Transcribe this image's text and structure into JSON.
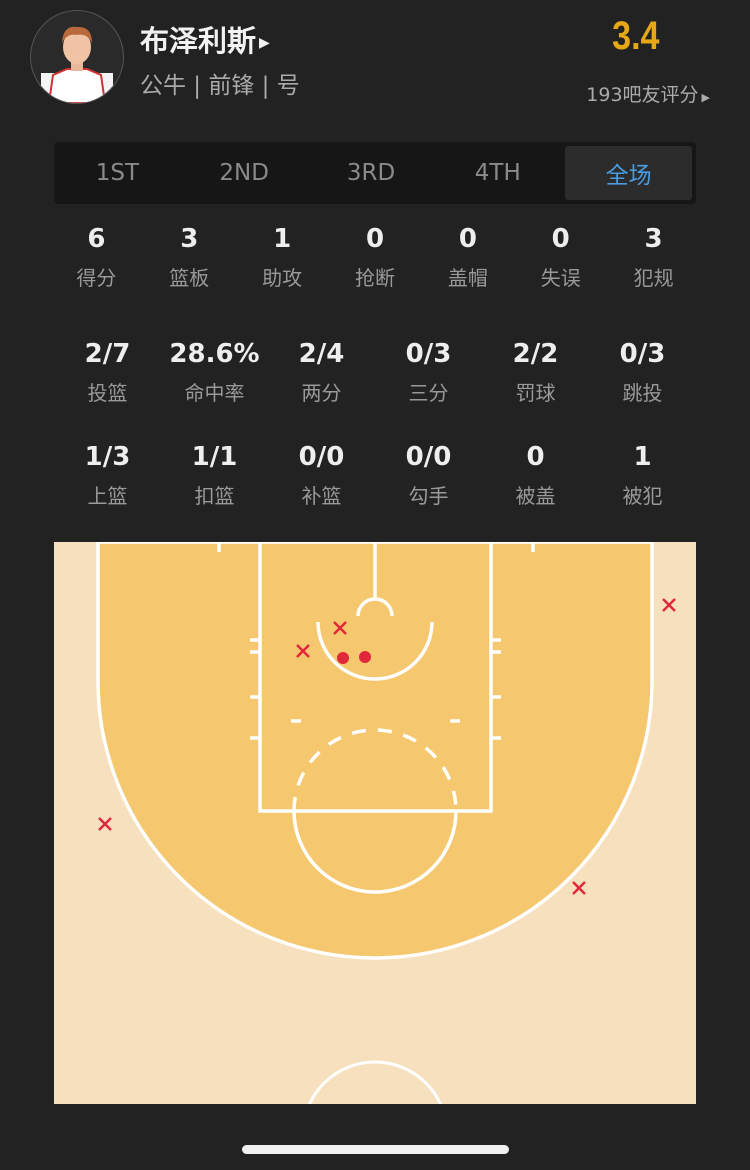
{
  "player": {
    "name": "布泽利斯",
    "info": "公牛 | 前锋 | 号",
    "rating": "3.4",
    "votes": "193吧友评分"
  },
  "tabs": [
    {
      "label": "1ST"
    },
    {
      "label": "2ND"
    },
    {
      "label": "3RD"
    },
    {
      "label": "4TH"
    },
    {
      "label": "全场",
      "active": true
    }
  ],
  "basic": [
    {
      "v": "6",
      "l": "得分"
    },
    {
      "v": "3",
      "l": "篮板"
    },
    {
      "v": "1",
      "l": "助攻"
    },
    {
      "v": "0",
      "l": "抢断"
    },
    {
      "v": "0",
      "l": "盖帽"
    },
    {
      "v": "0",
      "l": "失误"
    },
    {
      "v": "3",
      "l": "犯规"
    }
  ],
  "shooting": [
    {
      "v": "2/7",
      "l": "投篮"
    },
    {
      "v": "28.6%",
      "l": "命中率"
    },
    {
      "v": "2/4",
      "l": "两分"
    },
    {
      "v": "0/3",
      "l": "三分"
    },
    {
      "v": "2/2",
      "l": "罚球"
    },
    {
      "v": "0/3",
      "l": "跳投"
    }
  ],
  "types": [
    {
      "v": "1/3",
      "l": "上篮"
    },
    {
      "v": "1/1",
      "l": "扣篮"
    },
    {
      "v": "0/0",
      "l": "补篮"
    },
    {
      "v": "0/0",
      "l": "勾手"
    },
    {
      "v": "0",
      "l": "被盖"
    },
    {
      "v": "1",
      "l": "被犯"
    }
  ],
  "colors": {
    "rating": "#e6a817",
    "active_tab": "#4a9be0",
    "shot": "#e0283a",
    "paint": "#f5c76e",
    "outside": "#f7e0bd"
  },
  "shots": [
    {
      "result": "miss",
      "zone": "right corner three"
    },
    {
      "result": "miss",
      "zone": "paint"
    },
    {
      "result": "miss",
      "zone": "paint"
    },
    {
      "result": "make",
      "zone": "restricted area"
    },
    {
      "result": "make",
      "zone": "restricted area"
    },
    {
      "result": "miss",
      "zone": "left wing three"
    },
    {
      "result": "miss",
      "zone": "right wing three"
    }
  ]
}
